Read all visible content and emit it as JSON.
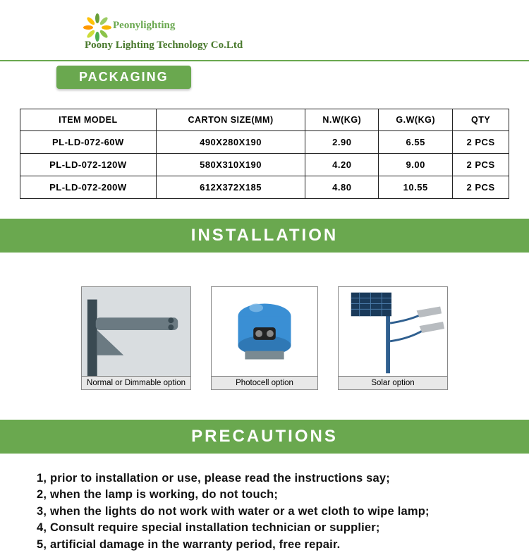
{
  "brand": {
    "logo_text": "Peonylighting",
    "company": "Poony Lighting Technology Co.Ltd",
    "petal_colors": [
      "#f7b500",
      "#8bc34a",
      "#4caf50",
      "#cddc39",
      "#ff9800",
      "#ffc107",
      "#689f38",
      "#9ccc65"
    ],
    "accent": "#6aa84f"
  },
  "packaging": {
    "title": "PACKAGING",
    "columns": [
      "ITEM MODEL",
      "CARTON SIZE(MM)",
      "N.W(KG)",
      "G.W(KG)",
      "QTY"
    ],
    "rows": [
      [
        "PL-LD-072-60W",
        "490X280X190",
        "2.90",
        "6.55",
        "2 PCS"
      ],
      [
        "PL-LD-072-120W",
        "580X310X190",
        "4.20",
        "9.00",
        "2 PCS"
      ],
      [
        "PL-LD-072-200W",
        "612X372X185",
        "4.80",
        "10.55",
        "2 PCS"
      ]
    ]
  },
  "installation": {
    "title": "INSTALLATION",
    "options": [
      {
        "caption": "Normal or Dimmable option"
      },
      {
        "caption": "Photocell option"
      },
      {
        "caption": "Solar option"
      }
    ]
  },
  "precautions": {
    "title": "PRECAUTIONS",
    "items": [
      "1, prior to installation or use, please read the instructions say;",
      "2, when the lamp is working, do not touch;",
      "3, when the lights do not work with water or a wet cloth to wipe lamp;",
      "4, Consult require special installation technician or supplier;",
      "5, artificial damage in the warranty period, free repair."
    ]
  }
}
